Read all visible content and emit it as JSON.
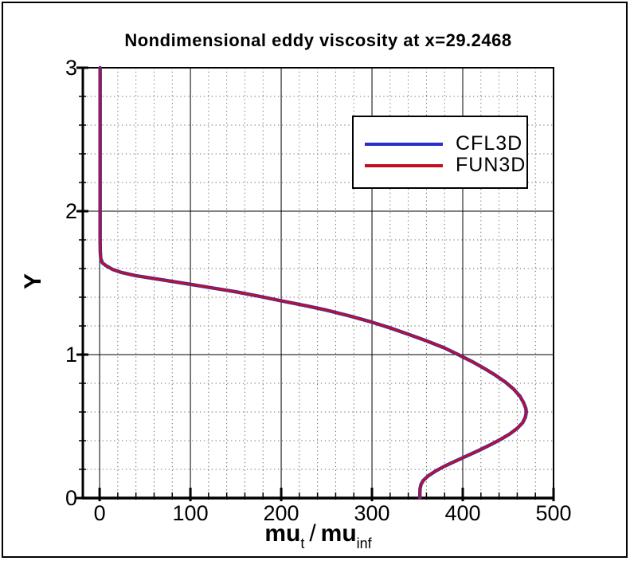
{
  "window": {
    "background": "#ffffff",
    "border_color": "#000000"
  },
  "chart_data": {
    "type": "line",
    "title": "Nondimensional eddy viscosity at x=29.2468",
    "xlabel": "mu_t / mu_inf",
    "xlabel_parts": [
      {
        "text": "mu",
        "style": "main"
      },
      {
        "text": "t",
        "style": "sub"
      },
      {
        "text": "/",
        "style": "slash"
      },
      {
        "text": "mu",
        "style": "main"
      },
      {
        "text": "inf",
        "style": "sub"
      }
    ],
    "ylabel": "Y",
    "xlim": [
      -18.5,
      500
    ],
    "ylim": [
      0,
      3
    ],
    "xticks": [
      0,
      100,
      200,
      300,
      400,
      500
    ],
    "yticks": [
      0,
      1,
      2,
      3
    ],
    "x_minor_step": 20,
    "y_minor_step": 0.2,
    "grid": {
      "major": "solid",
      "minor": "dotted",
      "major_color": "#000000",
      "minor_color": "#6e6e6e"
    },
    "axis_color": "#000000",
    "legend": {
      "position": "upper-right-inside",
      "entries": [
        {
          "label": "CFL3D",
          "color": "#2a2ec8"
        },
        {
          "label": "FUN3D",
          "color": "#bf1122"
        }
      ]
    },
    "series": [
      {
        "name": "CFL3D",
        "color": "#2a2ec8",
        "points": [
          [
            0.5,
            3.0
          ],
          [
            0.5,
            1.8
          ],
          [
            0.7,
            1.72
          ],
          [
            1.2,
            1.67
          ],
          [
            3,
            1.64
          ],
          [
            7,
            1.62
          ],
          [
            14,
            1.595
          ],
          [
            24,
            1.573
          ],
          [
            40,
            1.55
          ],
          [
            60,
            1.53
          ],
          [
            80,
            1.51
          ],
          [
            100,
            1.49
          ],
          [
            125,
            1.464
          ],
          [
            150,
            1.438
          ],
          [
            175,
            1.408
          ],
          [
            200,
            1.375
          ],
          [
            225,
            1.344
          ],
          [
            250,
            1.31
          ],
          [
            275,
            1.27
          ],
          [
            300,
            1.226
          ],
          [
            320,
            1.186
          ],
          [
            340,
            1.142
          ],
          [
            360,
            1.096
          ],
          [
            380,
            1.046
          ],
          [
            395,
            1.0
          ],
          [
            410,
            0.952
          ],
          [
            424,
            0.903
          ],
          [
            436,
            0.856
          ],
          [
            447,
            0.808
          ],
          [
            456,
            0.76
          ],
          [
            463,
            0.71
          ],
          [
            467,
            0.665
          ],
          [
            469.5,
            0.625
          ],
          [
            470,
            0.6
          ],
          [
            469,
            0.565
          ],
          [
            466,
            0.525
          ],
          [
            460,
            0.486
          ],
          [
            452,
            0.448
          ],
          [
            442,
            0.41
          ],
          [
            430,
            0.37
          ],
          [
            417,
            0.33
          ],
          [
            404,
            0.292
          ],
          [
            391,
            0.255
          ],
          [
            380,
            0.222
          ],
          [
            370,
            0.188
          ],
          [
            362,
            0.155
          ],
          [
            356.5,
            0.122
          ],
          [
            354,
            0.095
          ],
          [
            353,
            0.065
          ],
          [
            352.8,
            0.03
          ],
          [
            352.8,
            0.0
          ]
        ]
      },
      {
        "name": "FUN3D",
        "color": "#bf1122",
        "points": [
          [
            0.5,
            3.0
          ],
          [
            0.5,
            1.8
          ],
          [
            0.7,
            1.72
          ],
          [
            1.2,
            1.67
          ],
          [
            3,
            1.64
          ],
          [
            7,
            1.62
          ],
          [
            14,
            1.595
          ],
          [
            24,
            1.573
          ],
          [
            40,
            1.55
          ],
          [
            60,
            1.53
          ],
          [
            80,
            1.51
          ],
          [
            100,
            1.49
          ],
          [
            125,
            1.464
          ],
          [
            150,
            1.438
          ],
          [
            175,
            1.408
          ],
          [
            200,
            1.375
          ],
          [
            225,
            1.344
          ],
          [
            250,
            1.31
          ],
          [
            275,
            1.27
          ],
          [
            300,
            1.226
          ],
          [
            320,
            1.186
          ],
          [
            340,
            1.142
          ],
          [
            360,
            1.096
          ],
          [
            380,
            1.046
          ],
          [
            395,
            1.0
          ],
          [
            410,
            0.952
          ],
          [
            424,
            0.903
          ],
          [
            436,
            0.856
          ],
          [
            447,
            0.808
          ],
          [
            456,
            0.76
          ],
          [
            463,
            0.71
          ],
          [
            467,
            0.665
          ],
          [
            469.5,
            0.625
          ],
          [
            470,
            0.6
          ],
          [
            469,
            0.565
          ],
          [
            466,
            0.525
          ],
          [
            460,
            0.486
          ],
          [
            452,
            0.448
          ],
          [
            442,
            0.41
          ],
          [
            430,
            0.37
          ],
          [
            417,
            0.33
          ],
          [
            404,
            0.292
          ],
          [
            391,
            0.255
          ],
          [
            380,
            0.222
          ],
          [
            370,
            0.188
          ],
          [
            362,
            0.155
          ],
          [
            356.5,
            0.122
          ],
          [
            354,
            0.095
          ],
          [
            353,
            0.065
          ],
          [
            352.8,
            0.03
          ],
          [
            352.8,
            0.0
          ]
        ]
      }
    ]
  }
}
